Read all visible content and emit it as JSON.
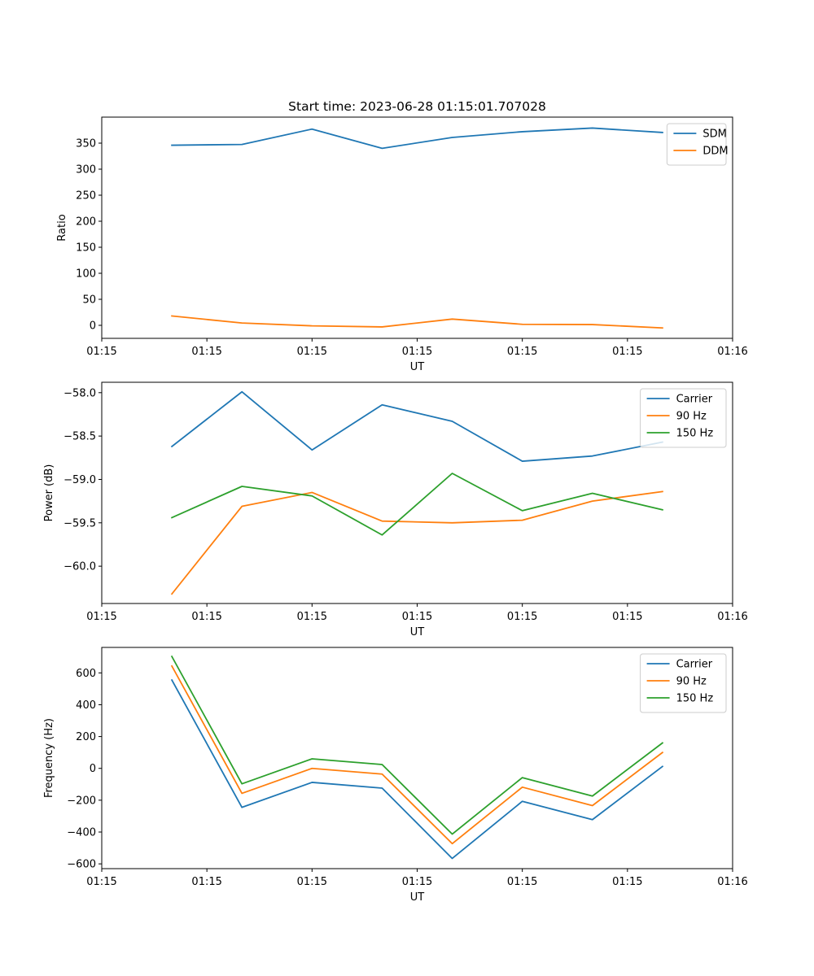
{
  "figure": {
    "title": "Start time: 2023-06-28 01:15:01.707028"
  },
  "colors": {
    "blue": "#1f77b4",
    "orange": "#ff7f0e",
    "green": "#2ca02c"
  },
  "chart_data": [
    {
      "type": "line",
      "title": "Start time: 2023-06-28 01:15:01.707028",
      "xlabel": "UT",
      "ylabel": "Ratio",
      "x": [
        1,
        2,
        3,
        4,
        5,
        6,
        7,
        8
      ],
      "xlim": [
        0,
        9
      ],
      "xticks": [
        0,
        1.5,
        3,
        4.5,
        6,
        7.5,
        9
      ],
      "xtick_labels": [
        "01:15",
        "01:15",
        "01:15",
        "01:15",
        "01:15",
        "01:15",
        "01:16"
      ],
      "ylim": [
        -25,
        400
      ],
      "yticks": [
        0,
        50,
        100,
        150,
        200,
        250,
        300,
        350
      ],
      "legend": "top-right",
      "grid": false,
      "series": [
        {
          "name": "SDM",
          "color": "#1f77b4",
          "values": [
            346,
            347.5,
            377,
            340,
            361,
            372,
            379,
            370.5
          ]
        },
        {
          "name": "DDM",
          "color": "#ff7f0e",
          "values": [
            18,
            4.5,
            -1,
            -3,
            12,
            2,
            1.5,
            -5
          ]
        }
      ]
    },
    {
      "type": "line",
      "title": "",
      "xlabel": "UT",
      "ylabel": "Power (dB)",
      "x": [
        1,
        2,
        3,
        4,
        5,
        6,
        7,
        8
      ],
      "xlim": [
        0,
        9
      ],
      "xticks": [
        0,
        1.5,
        3,
        4.5,
        6,
        7.5,
        9
      ],
      "xtick_labels": [
        "01:15",
        "01:15",
        "01:15",
        "01:15",
        "01:15",
        "01:15",
        "01:16"
      ],
      "ylim": [
        -60.43,
        -57.88
      ],
      "yticks": [
        -60.0,
        -59.5,
        -59.0,
        -58.5,
        -58.0
      ],
      "ytick_labels": [
        "−60.0",
        "−59.5",
        "−59.0",
        "−58.5",
        "−58.0"
      ],
      "legend": "top-right",
      "grid": false,
      "series": [
        {
          "name": "Carrier",
          "color": "#1f77b4",
          "values": [
            -58.62,
            -57.99,
            -58.66,
            -58.14,
            -58.33,
            -58.79,
            -58.73,
            -58.57
          ]
        },
        {
          "name": "90 Hz",
          "color": "#ff7f0e",
          "values": [
            -60.32,
            -59.31,
            -59.15,
            -59.48,
            -59.5,
            -59.47,
            -59.25,
            -59.14
          ]
        },
        {
          "name": "150 Hz",
          "color": "#2ca02c",
          "values": [
            -59.44,
            -59.08,
            -59.19,
            -59.64,
            -58.93,
            -59.36,
            -59.16,
            -59.35
          ]
        }
      ]
    },
    {
      "type": "line",
      "title": "",
      "xlabel": "UT",
      "ylabel": "Frequency (Hz)",
      "x": [
        1,
        2,
        3,
        4,
        5,
        6,
        7,
        8
      ],
      "xlim": [
        0,
        9
      ],
      "xticks": [
        0,
        1.5,
        3,
        4.5,
        6,
        7.5,
        9
      ],
      "xtick_labels": [
        "01:15",
        "01:15",
        "01:15",
        "01:15",
        "01:15",
        "01:15",
        "01:16"
      ],
      "ylim": [
        -630,
        760
      ],
      "yticks": [
        -600,
        -400,
        -200,
        0,
        200,
        400,
        600
      ],
      "ytick_labels": [
        "−600",
        "−400",
        "−200",
        "0",
        "200",
        "400",
        "600"
      ],
      "legend": "top-right",
      "grid": false,
      "series": [
        {
          "name": "Carrier",
          "color": "#1f77b4",
          "values": [
            555,
            -245,
            -88,
            -124,
            -566,
            -207,
            -322,
            12
          ]
        },
        {
          "name": "90 Hz",
          "color": "#ff7f0e",
          "values": [
            643,
            -157,
            0,
            -36,
            -473,
            -118,
            -234,
            100
          ]
        },
        {
          "name": "150 Hz",
          "color": "#2ca02c",
          "values": [
            703,
            -97,
            60,
            24,
            -413,
            -58,
            -174,
            160
          ]
        }
      ]
    }
  ]
}
